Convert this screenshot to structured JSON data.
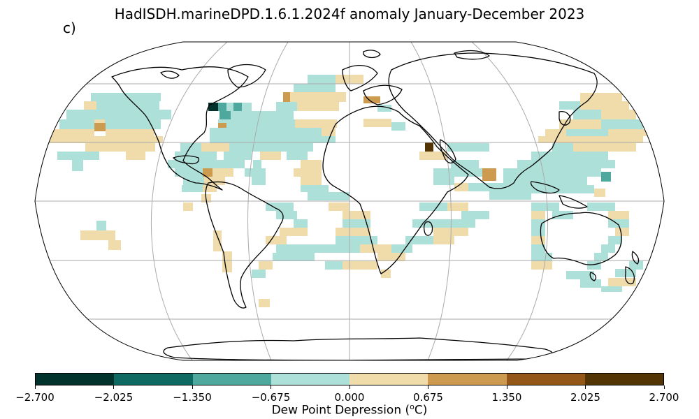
{
  "title": "HadISDH.marineDPD.1.6.1.2024f anomaly January-December 2023",
  "panel_label": "c)",
  "colorbar": {
    "label_prefix": "Dew Point Depression (",
    "label_sup": "o",
    "label_suffix": "C)",
    "ticks": [
      "−2.700",
      "−2.025",
      "−1.350",
      "−0.675",
      "0.000",
      "0.675",
      "1.350",
      "2.025",
      "2.700"
    ],
    "tick_values": [
      -2.7,
      -2.025,
      -1.35,
      -0.675,
      0.0,
      0.675,
      1.35,
      2.025,
      2.7
    ],
    "colors": [
      "#01332c",
      "#0c6a63",
      "#4fa89d",
      "#aee0da",
      "#f0dcaa",
      "#cc9b4f",
      "#935817",
      "#533405"
    ]
  },
  "map": {
    "projection": "Robinson",
    "ocean_color": "#ffffff",
    "coastline_color": "#000000",
    "gridline_color": "#aaaaaa"
  }
}
